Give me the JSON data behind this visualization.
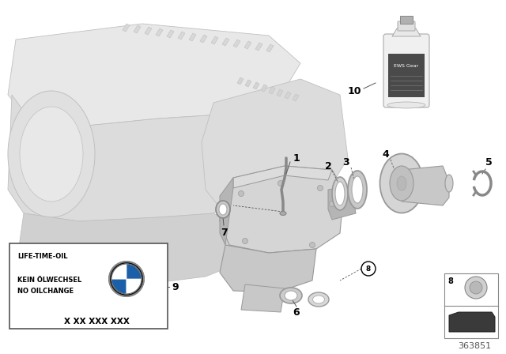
{
  "bg_color": "#ffffff",
  "part_color_light": "#e8e8e8",
  "part_color_mid": "#d0d0d0",
  "part_color_dark": "#b8b8b8",
  "part_color_shadow": "#a0a0a0",
  "edge_color": "#999999",
  "diagram_number": "363851",
  "sticker_text_line1": "LIFE-TIME-OIL",
  "sticker_text_line2": "KEIN ÖLWECHSEL",
  "sticker_text_line3": "NO OILCHANGE",
  "sticker_part_code": "X XX XXX XXX",
  "label_color": "#000000",
  "leader_color": "#555555"
}
